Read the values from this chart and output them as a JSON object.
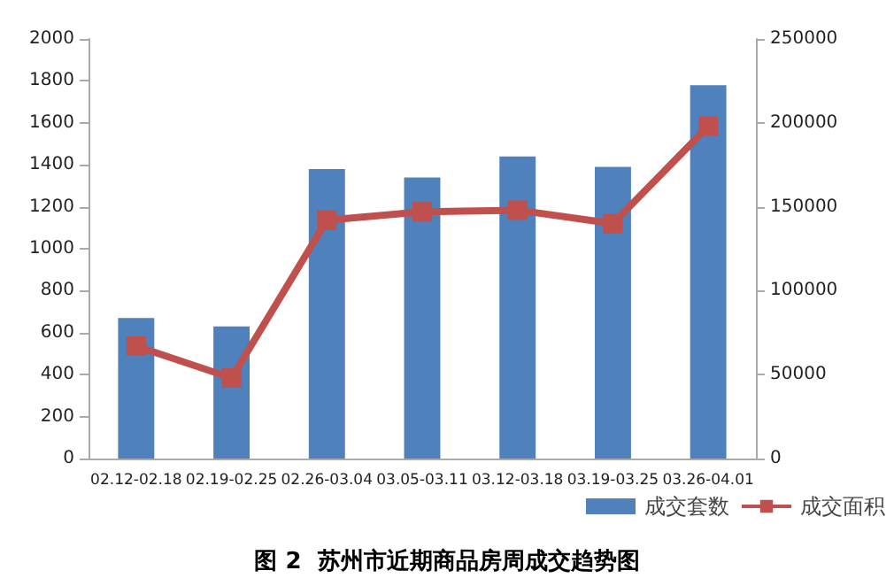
{
  "chart_data": {
    "type": "bar",
    "title": "图 2  苏州市近期商品房周成交趋势图",
    "categories": [
      "02.12-02.18",
      "02.19-02.25",
      "02.26-03.04",
      "03.05-03.11",
      "03.12-03.18",
      "03.19-03.25",
      "03.26-04.01"
    ],
    "series": [
      {
        "name": "成交套数",
        "color": "#4f81bd",
        "values": [
          670,
          630,
          1380,
          1340,
          1440,
          1390,
          1780
        ]
      },
      {
        "name": "成交面积",
        "type": "line",
        "axis": "y2",
        "color": "#c0504d",
        "marker": "square",
        "values": [
          67000,
          48000,
          142000,
          147000,
          148000,
          140000,
          198000
        ]
      }
    ],
    "ylim": [
      0,
      2000
    ],
    "yticks": [
      0,
      200,
      400,
      600,
      800,
      1000,
      1200,
      1400,
      1600,
      1800,
      2000
    ],
    "y2lim": [
      0,
      250000
    ],
    "y2ticks": [
      0,
      50000,
      100000,
      150000,
      200000,
      250000
    ],
    "grid": false,
    "legend": "bottom right"
  }
}
